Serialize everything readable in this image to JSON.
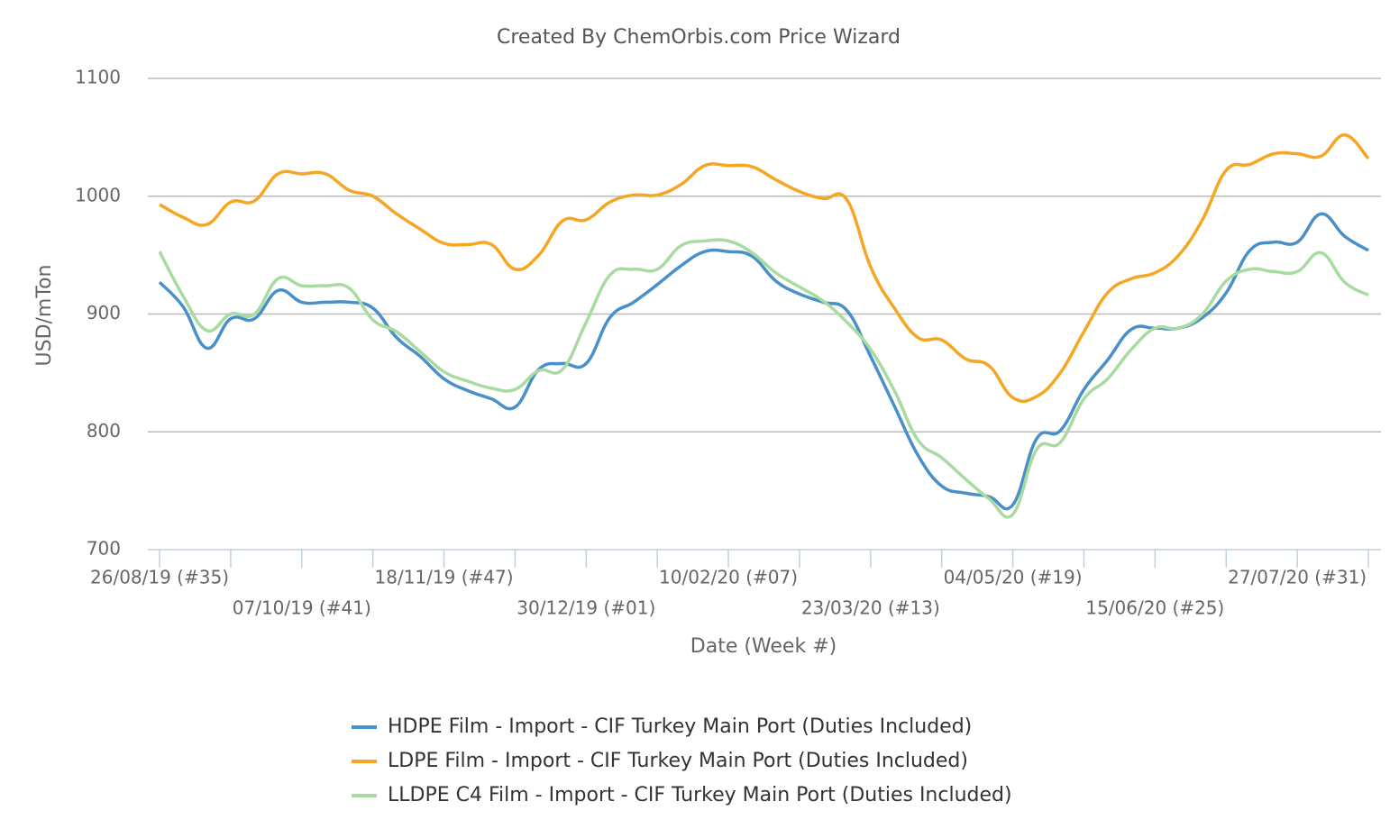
{
  "chart_data": {
    "type": "line",
    "title": "Created By ChemOrbis.com Price Wizard",
    "x_label": "Date (Week #)",
    "y_label": "USD/mTon",
    "categories": [
      "26/08/19 (#35)",
      null,
      null,
      null,
      null,
      null,
      "07/10/19 (#41)",
      null,
      null,
      null,
      null,
      null,
      "18/11/19 (#47)",
      null,
      null,
      null,
      null,
      null,
      "30/12/19 (#01)",
      null,
      null,
      null,
      null,
      null,
      "10/02/20 (#07)",
      null,
      null,
      null,
      null,
      null,
      "23/03/20 (#13)",
      null,
      null,
      null,
      null,
      null,
      "04/05/20 (#19)",
      null,
      null,
      null,
      null,
      null,
      "15/06/20 (#25)",
      null,
      null,
      null,
      null,
      null,
      "27/07/20 (#31)",
      null,
      null,
      null
    ],
    "ylim": [
      700,
      1100
    ],
    "yticks": [
      700,
      800,
      900,
      1000,
      1100
    ],
    "grid": true,
    "series": [
      {
        "name": "HDPE Film - Import - CIF Turkey Main Port (Duties Included)",
        "color": "#4a90c8",
        "values": [
          927,
          906,
          871,
          896,
          896,
          920,
          910,
          910,
          910,
          905,
          880,
          864,
          845,
          835,
          828,
          821,
          853,
          858,
          858,
          897,
          910,
          925,
          941,
          953,
          953,
          949,
          928,
          917,
          910,
          903,
          864,
          822,
          780,
          754,
          748,
          745,
          738,
          794,
          801,
          836,
          861,
          887,
          888,
          888,
          897,
          918,
          954,
          961,
          961,
          985,
          966,
          954
        ]
      },
      {
        "name": "LDPE Film - Import - CIF Turkey Main Port (Duties Included)",
        "color": "#f5a623",
        "values": [
          993,
          982,
          976,
          995,
          996,
          1019,
          1019,
          1019,
          1005,
          1000,
          985,
          972,
          960,
          959,
          959,
          938,
          950,
          979,
          980,
          995,
          1001,
          1001,
          1010,
          1026,
          1026,
          1025,
          1014,
          1004,
          998,
          997,
          940,
          905,
          880,
          878,
          862,
          856,
          829,
          830,
          850,
          885,
          918,
          930,
          935,
          950,
          980,
          1022,
          1027,
          1036,
          1036,
          1034,
          1052,
          1032
        ]
      },
      {
        "name": "LLDPE C4 Film - Import - CIF Turkey Main Port (Duties Included)",
        "color": "#a8dba0",
        "values": [
          953,
          915,
          886,
          900,
          900,
          930,
          924,
          924,
          922,
          895,
          885,
          868,
          851,
          843,
          837,
          836,
          852,
          853,
          893,
          933,
          938,
          938,
          958,
          962,
          962,
          952,
          935,
          923,
          911,
          893,
          870,
          835,
          793,
          778,
          760,
          743,
          730,
          785,
          791,
          828,
          845,
          870,
          888,
          888,
          900,
          928,
          938,
          936,
          936,
          952,
          927,
          916
        ]
      }
    ]
  }
}
